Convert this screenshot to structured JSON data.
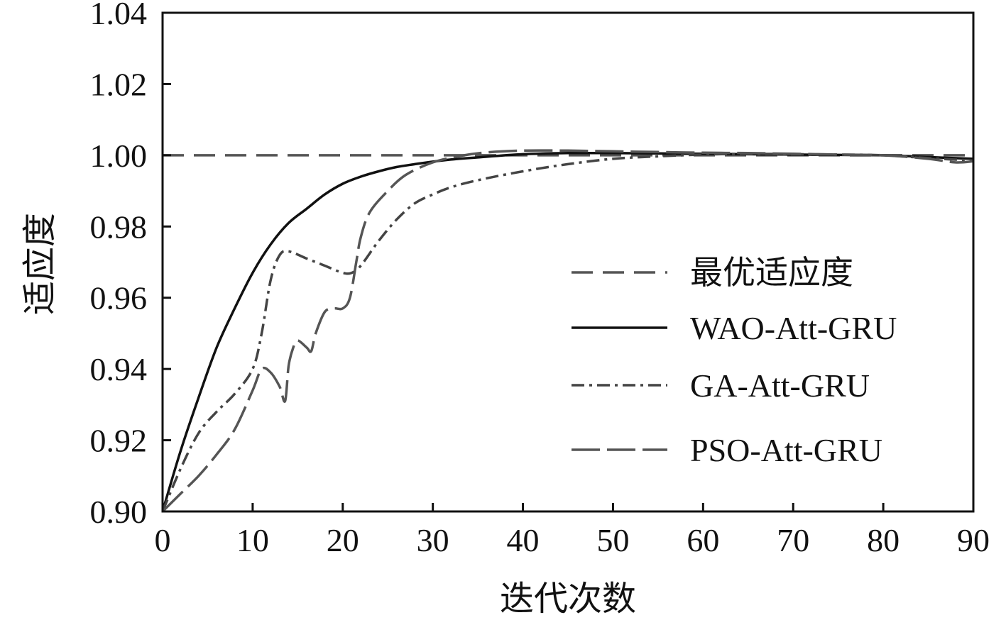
{
  "chart_data": {
    "type": "line",
    "title": "",
    "xlabel": "迭代次数",
    "ylabel": "适应度",
    "xlim": [
      0,
      90
    ],
    "ylim": [
      0.9,
      1.04
    ],
    "x_ticks": [
      {
        "value": 0,
        "label": "0"
      },
      {
        "value": 10,
        "label": "10"
      },
      {
        "value": 20,
        "label": "20"
      },
      {
        "value": 30,
        "label": "30"
      },
      {
        "value": 40,
        "label": "40"
      },
      {
        "value": 50,
        "label": "50"
      },
      {
        "value": 60,
        "label": "60"
      },
      {
        "value": 70,
        "label": "70"
      },
      {
        "value": 80,
        "label": "80"
      },
      {
        "value": 90,
        "label": "90"
      }
    ],
    "y_ticks": [
      {
        "value": 0.9,
        "label": "0.90"
      },
      {
        "value": 0.92,
        "label": "0.92"
      },
      {
        "value": 0.94,
        "label": "0.94"
      },
      {
        "value": 0.96,
        "label": "0.96"
      },
      {
        "value": 0.98,
        "label": "0.98"
      },
      {
        "value": 1.0,
        "label": "1.00"
      },
      {
        "value": 1.02,
        "label": "1.02"
      },
      {
        "value": 1.04,
        "label": "1.04"
      }
    ],
    "grid": false,
    "legend_position": "right",
    "series": [
      {
        "name": "最优适应度",
        "color": "#555555",
        "dash": "dash",
        "x": [
          0,
          90
        ],
        "y": [
          1.0,
          1.0
        ]
      },
      {
        "name": "WAO-Att-GRU",
        "color": "#111111",
        "dash": "solid",
        "x": [
          0,
          2,
          4,
          6,
          8,
          10,
          12,
          14,
          16,
          18,
          20,
          22,
          24,
          26,
          28,
          30,
          32,
          35,
          40,
          45,
          50,
          55,
          60,
          65,
          70,
          75,
          80,
          85,
          90
        ],
        "y": [
          0.9,
          0.917,
          0.932,
          0.946,
          0.957,
          0.967,
          0.975,
          0.981,
          0.985,
          0.989,
          0.992,
          0.994,
          0.9955,
          0.9967,
          0.9975,
          0.9982,
          0.9988,
          0.9994,
          1.0003,
          1.0006,
          1.0006,
          1.0005,
          1.0004,
          1.0003,
          1.0002,
          1.0001,
          1.0,
          0.9995,
          0.999
        ]
      },
      {
        "name": "GA-Att-GRU",
        "color": "#444444",
        "dash": "dash-dot",
        "x": [
          0,
          2,
          4,
          6,
          8,
          10,
          11,
          12,
          13,
          14,
          16,
          18,
          20,
          21,
          22,
          24,
          26,
          28,
          30,
          32,
          35,
          40,
          45,
          50,
          55,
          60,
          65,
          70,
          75,
          80,
          85,
          90
        ],
        "y": [
          0.9,
          0.912,
          0.922,
          0.928,
          0.933,
          0.94,
          0.95,
          0.965,
          0.972,
          0.973,
          0.971,
          0.969,
          0.967,
          0.967,
          0.969,
          0.976,
          0.982,
          0.9865,
          0.989,
          0.991,
          0.993,
          0.9955,
          0.9975,
          0.999,
          0.9997,
          1.0002,
          1.0004,
          1.0003,
          1.0002,
          1.0,
          0.9992,
          0.9985
        ]
      },
      {
        "name": "PSO-Att-GRU",
        "color": "#555555",
        "dash": "long-dash",
        "x": [
          0,
          2,
          4,
          6,
          8,
          10,
          11,
          12,
          13,
          13.6,
          14,
          14.5,
          15,
          16,
          16.5,
          17,
          18,
          19,
          20,
          20.8,
          21.5,
          22,
          23,
          25,
          27,
          30,
          33,
          36,
          40,
          45,
          50,
          55,
          60,
          65,
          70,
          75,
          80,
          85,
          88,
          90
        ],
        "y": [
          0.9,
          0.905,
          0.91,
          0.916,
          0.923,
          0.934,
          0.94,
          0.939,
          0.935,
          0.931,
          0.941,
          0.946,
          0.948,
          0.946,
          0.945,
          0.95,
          0.956,
          0.957,
          0.957,
          0.96,
          0.97,
          0.977,
          0.984,
          0.99,
          0.9945,
          0.998,
          0.9998,
          1.0008,
          1.0013,
          1.0013,
          1.0011,
          1.0009,
          1.0007,
          1.0006,
          1.0004,
          1.0002,
          1.0,
          0.999,
          0.998,
          0.9983
        ]
      }
    ]
  }
}
